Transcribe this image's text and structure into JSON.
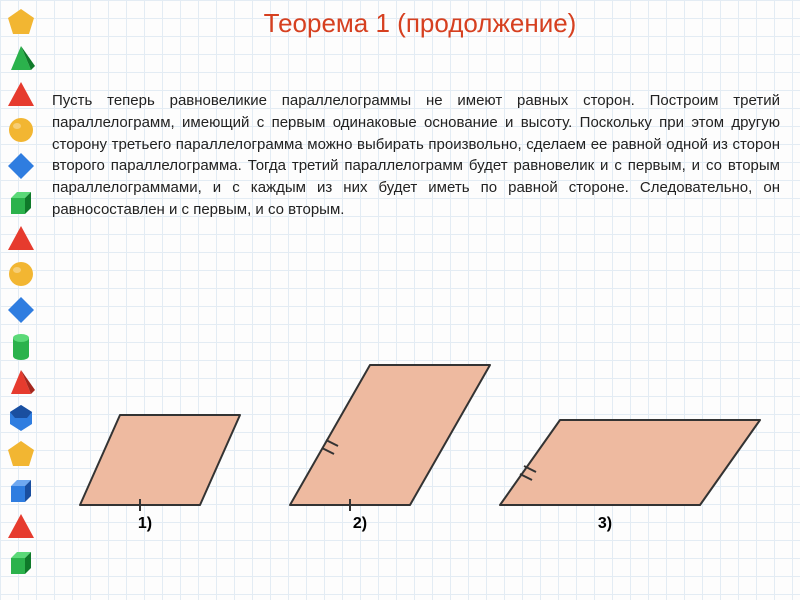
{
  "title": {
    "text": "Теорема 1 (продолжение)",
    "color": "#d64020",
    "fontsize": 26
  },
  "body": {
    "text": "Пусть теперь равновеликие параллелограммы не имеют равных сторон. Построим третий параллелограмм, имеющий с первым одинаковые основание и высоту. Поскольку при этом другую сторону третьего параллелограмма можно выбирать произвольно, сделаем ее равной одной из сторон второго параллелограмма. Тогда третий параллелограмм будет равновелик и с первым, и со вторым параллелограммами, и с каждым из них будет иметь по равной стороне. Следовательно, он равносоставлен и с первым, и со вторым.",
    "fontsize": 15,
    "color": "#222222"
  },
  "parallelogram_fill": "#eebaa0",
  "parallelogram_stroke": "#333333",
  "figures": {
    "labels": [
      "1)",
      "2)",
      "3)"
    ]
  },
  "sidebar_shapes": [
    {
      "type": "pentagon",
      "color": "#f2b632"
    },
    {
      "type": "pyramid",
      "front": "#2bb24c",
      "side": "#0f7a2a"
    },
    {
      "type": "triangle",
      "color": "#e63b2e"
    },
    {
      "type": "sphere",
      "color": "#f2b632"
    },
    {
      "type": "diamond",
      "color": "#2f7de0"
    },
    {
      "type": "cube",
      "front": "#2bb24c",
      "top": "#5bd978",
      "side": "#0f7a2a"
    },
    {
      "type": "triangle",
      "color": "#e63b2e"
    },
    {
      "type": "sphere",
      "color": "#f2b632"
    },
    {
      "type": "diamond",
      "color": "#2f7de0"
    },
    {
      "type": "cylinder",
      "body": "#2bb24c",
      "top": "#5bd978"
    },
    {
      "type": "pyramid",
      "front": "#e63b2e",
      "side": "#a6271e"
    },
    {
      "type": "dodeca",
      "color": "#2f7de0",
      "side": "#1a4fa0"
    },
    {
      "type": "pentagon",
      "color": "#f2b632"
    },
    {
      "type": "cube",
      "front": "#2f7de0",
      "top": "#6fa8f0",
      "side": "#1a4fa0"
    },
    {
      "type": "triangle",
      "color": "#e63b2e"
    },
    {
      "type": "cube",
      "front": "#2bb24c",
      "top": "#5bd978",
      "side": "#0f7a2a"
    }
  ]
}
